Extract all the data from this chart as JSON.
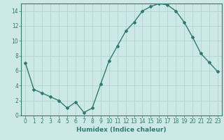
{
  "x": [
    0,
    1,
    2,
    3,
    4,
    5,
    6,
    7,
    8,
    9,
    10,
    11,
    12,
    13,
    14,
    15,
    16,
    17,
    18,
    19,
    20,
    21,
    22,
    23
  ],
  "y": [
    7.0,
    3.5,
    3.0,
    2.5,
    2.0,
    1.0,
    1.8,
    0.4,
    1.0,
    4.2,
    7.3,
    9.3,
    11.3,
    12.5,
    14.0,
    14.6,
    15.0,
    14.8,
    14.0,
    12.5,
    10.5,
    8.3,
    7.1,
    5.9
  ],
  "line_color": "#2e7d6e",
  "marker": "D",
  "marker_size": 2.0,
  "bg_color": "#cce9e8",
  "grid_color": "#aacfcf",
  "xlabel": "Humidex (Indice chaleur)",
  "xlim": [
    -0.5,
    23.5
  ],
  "ylim": [
    0,
    15
  ],
  "yticks": [
    0,
    2,
    4,
    6,
    8,
    10,
    12,
    14
  ],
  "xticks": [
    0,
    1,
    2,
    3,
    4,
    5,
    6,
    7,
    8,
    9,
    10,
    11,
    12,
    13,
    14,
    15,
    16,
    17,
    18,
    19,
    20,
    21,
    22,
    23
  ],
  "xlabel_fontsize": 6.5,
  "tick_fontsize": 5.5,
  "axis_color": "#2e7d6e",
  "linewidth": 1.0
}
